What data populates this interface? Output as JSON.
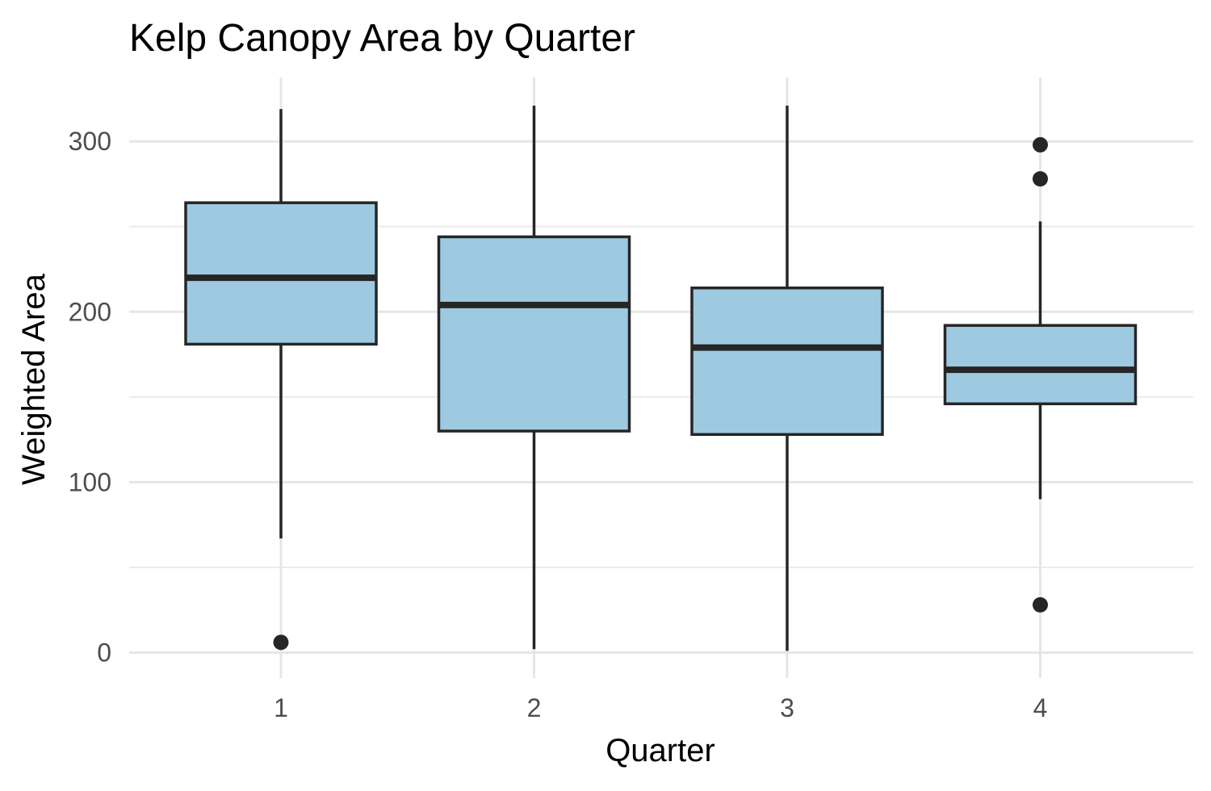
{
  "chart_data": {
    "type": "box",
    "title": "Kelp Canopy Area by Quarter",
    "xlabel": "Quarter",
    "ylabel": "Weighted Area",
    "categories": [
      "1",
      "2",
      "3",
      "4"
    ],
    "ylim": [
      -13,
      338
    ],
    "yticks": [
      0,
      100,
      200,
      300
    ],
    "grid": true,
    "box_fill": "#9ecae1",
    "line_color": "#262626",
    "grid_major_color": "#e6e6e6",
    "grid_minor_color": "#ebebeb",
    "series": [
      {
        "category": "1",
        "whisker_low": 67,
        "q1": 181,
        "median": 220,
        "q3": 264,
        "whisker_high": 319,
        "outliers": [
          6
        ]
      },
      {
        "category": "2",
        "whisker_low": 2,
        "q1": 130,
        "median": 204,
        "q3": 244,
        "whisker_high": 321,
        "outliers": []
      },
      {
        "category": "3",
        "whisker_low": 1,
        "q1": 128,
        "median": 179,
        "q3": 214,
        "whisker_high": 321,
        "outliers": []
      },
      {
        "category": "4",
        "whisker_low": 90,
        "q1": 146,
        "median": 166,
        "q3": 192,
        "whisker_high": 253,
        "outliers": [
          298,
          278,
          28
        ]
      }
    ]
  }
}
